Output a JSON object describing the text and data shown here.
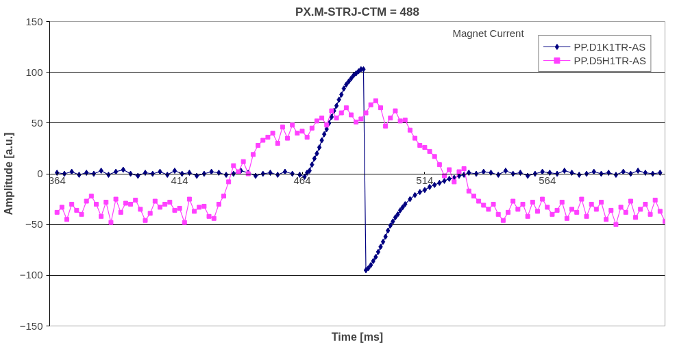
{
  "chart_data": {
    "type": "line",
    "title": "PX.M-STRJ-CTM = 488",
    "xlabel": "Time [ms]",
    "ylabel": "Amplitude [a.u.]",
    "annotations": [
      "Magnet Current"
    ],
    "xlim": [
      361,
      612
    ],
    "xticks": [
      364,
      414,
      464,
      514,
      564
    ],
    "ylim": [
      -150,
      150
    ],
    "yticks": [
      -150,
      -100,
      -50,
      0,
      50,
      100,
      150
    ],
    "grid": "y",
    "legend": "top right",
    "series": [
      {
        "name": "PP.D1K1TR-AS",
        "color": "#000080",
        "marker": "diamond",
        "x": [
          364,
          367,
          370,
          373,
          376,
          379,
          382,
          385,
          388,
          391,
          394,
          397,
          400,
          403,
          406,
          409,
          412,
          415,
          418,
          421,
          424,
          427,
          430,
          433,
          436,
          439,
          442,
          445,
          448,
          451,
          454,
          457,
          460,
          463,
          465,
          466,
          467,
          468,
          469,
          470,
          471,
          472,
          473,
          474,
          475,
          476,
          477,
          478,
          479,
          480,
          481,
          482,
          483,
          484,
          485,
          486,
          487,
          488,
          489,
          490,
          491,
          492,
          493,
          494,
          495,
          496,
          497,
          498,
          499,
          500,
          501,
          502,
          503,
          504,
          505,
          506,
          508,
          510,
          512,
          514,
          516,
          518,
          520,
          522,
          524,
          526,
          528,
          530,
          532,
          535,
          538,
          541,
          544,
          547,
          550,
          553,
          556,
          559,
          562,
          565,
          568,
          571,
          574,
          577,
          580,
          583,
          586,
          589,
          592,
          595,
          598,
          601,
          604,
          607,
          610
        ],
        "values": [
          1,
          0,
          2,
          -1,
          1,
          0,
          3,
          -1,
          2,
          4,
          0,
          -2,
          1,
          0,
          2,
          -1,
          3,
          0,
          1,
          -2,
          0,
          2,
          1,
          -1,
          0,
          3,
          1,
          -2,
          0,
          1,
          -1,
          2,
          0,
          -1,
          -3,
          1,
          3,
          9,
          15,
          20,
          26,
          33,
          39,
          44,
          50,
          56,
          62,
          67,
          73,
          78,
          84,
          88,
          91,
          94,
          97,
          99,
          101,
          103,
          103,
          -95,
          -93,
          -90,
          -86,
          -82,
          -77,
          -72,
          -67,
          -62,
          -56,
          -51,
          -47,
          -43,
          -40,
          -36,
          -33,
          -30,
          -25,
          -21,
          -18,
          -16,
          -13,
          -11,
          -9,
          -7,
          -5,
          -4,
          -2,
          -1,
          1,
          0,
          2,
          1,
          -1,
          3,
          0,
          1,
          -2,
          0,
          2,
          1,
          0,
          3,
          1,
          -1,
          0,
          2,
          0,
          1,
          -1,
          2,
          0,
          3,
          1,
          0,
          1
        ]
      },
      {
        "name": "PP.D5H1TR-AS",
        "color": "#ff40ff",
        "marker": "square",
        "x": [
          364,
          366,
          368,
          370,
          372,
          374,
          376,
          378,
          380,
          382,
          384,
          386,
          388,
          390,
          392,
          394,
          396,
          398,
          400,
          402,
          404,
          406,
          408,
          410,
          412,
          414,
          416,
          418,
          420,
          422,
          424,
          426,
          428,
          430,
          432,
          434,
          436,
          438,
          440,
          442,
          444,
          446,
          448,
          450,
          452,
          454,
          456,
          458,
          460,
          462,
          464,
          466,
          468,
          470,
          472,
          474,
          476,
          478,
          480,
          482,
          484,
          486,
          488,
          490,
          492,
          494,
          496,
          498,
          500,
          502,
          504,
          506,
          508,
          510,
          512,
          514,
          516,
          518,
          520,
          522,
          524,
          526,
          528,
          530,
          532,
          534,
          536,
          538,
          540,
          542,
          544,
          546,
          548,
          550,
          552,
          554,
          556,
          558,
          560,
          562,
          564,
          566,
          568,
          570,
          572,
          574,
          576,
          578,
          580,
          582,
          584,
          586,
          588,
          590,
          592,
          594,
          596,
          598,
          600,
          602,
          604,
          606,
          608,
          610,
          612
        ],
        "values": [
          -38,
          -33,
          -45,
          -30,
          -36,
          -40,
          -27,
          -22,
          -30,
          -42,
          -28,
          -48,
          -25,
          -38,
          -29,
          -30,
          -26,
          -35,
          -46,
          -39,
          -27,
          -33,
          -30,
          -28,
          -36,
          -34,
          -48,
          -25,
          -37,
          -33,
          -32,
          -42,
          -44,
          -30,
          -22,
          -8,
          8,
          2,
          12,
          0,
          19,
          28,
          33,
          36,
          40,
          30,
          46,
          35,
          48,
          40,
          42,
          36,
          45,
          52,
          55,
          48,
          62,
          55,
          60,
          65,
          58,
          51,
          54,
          60,
          68,
          72,
          65,
          47,
          55,
          62,
          52,
          53,
          43,
          35,
          28,
          26,
          22,
          17,
          9,
          -2,
          4,
          -8,
          2,
          5,
          -17,
          -22,
          -27,
          -31,
          -35,
          -30,
          -40,
          -46,
          -38,
          -27,
          -35,
          -30,
          -42,
          -28,
          -37,
          -25,
          -33,
          -40,
          -36,
          -28,
          -44,
          -35,
          -38,
          -25,
          -42,
          -30,
          -35,
          -28,
          -45,
          -36,
          -50,
          -33,
          -38,
          -27,
          -43,
          -35,
          -30,
          -40,
          -26,
          -37,
          -47
        ]
      }
    ]
  }
}
